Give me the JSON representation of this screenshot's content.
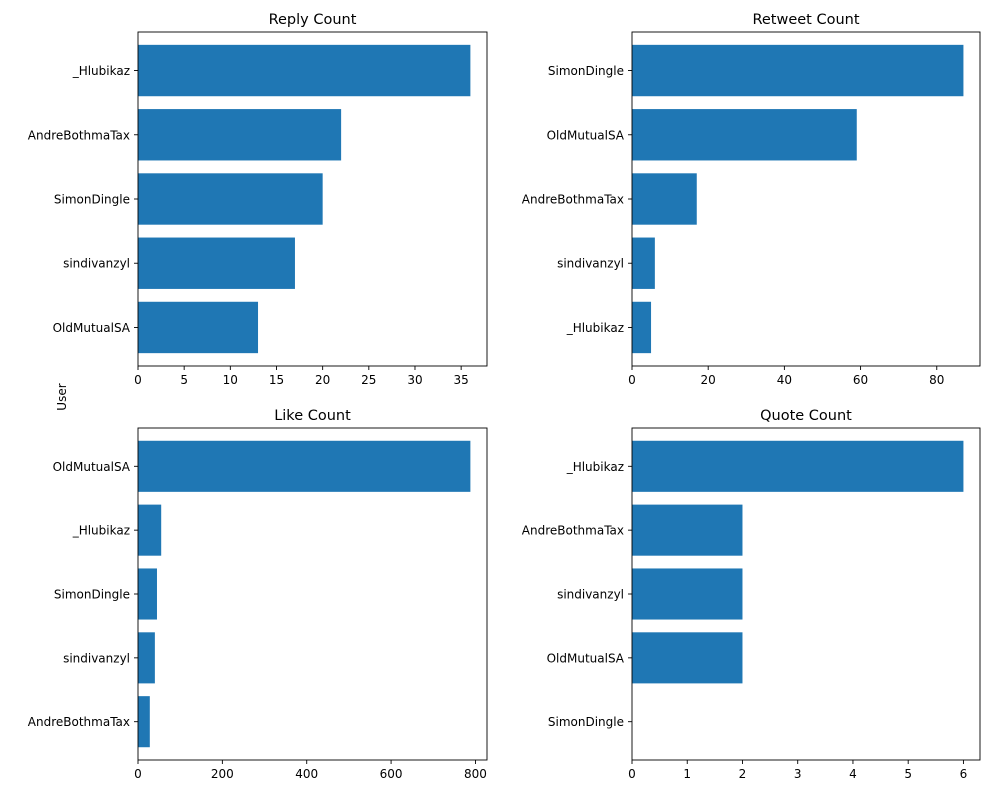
{
  "figure": {
    "shared_ylabel": "User",
    "bar_color": "#1f77b4"
  },
  "chart_data": [
    {
      "type": "bar",
      "orientation": "horizontal",
      "title": "Reply Count",
      "xlabel": "",
      "ylabel": "",
      "categories": [
        "_Hlubikaz",
        "AndreBothmaTax",
        "SimonDingle",
        "sindivanzyl",
        "OldMutualSA"
      ],
      "values": [
        36,
        22,
        20,
        17,
        13
      ],
      "xlim": [
        0,
        37.8
      ],
      "xticks": [
        0,
        5,
        10,
        15,
        20,
        25,
        30,
        35
      ],
      "grid": false
    },
    {
      "type": "bar",
      "orientation": "horizontal",
      "title": "Retweet Count",
      "xlabel": "",
      "ylabel": "",
      "categories": [
        "SimonDingle",
        "OldMutualSA",
        "AndreBothmaTax",
        "sindivanzyl",
        "_Hlubikaz"
      ],
      "values": [
        87,
        59,
        17,
        6,
        5
      ],
      "xlim": [
        0,
        91.35
      ],
      "xticks": [
        0,
        20,
        40,
        60,
        80
      ],
      "grid": false
    },
    {
      "type": "bar",
      "orientation": "horizontal",
      "title": "Like Count",
      "xlabel": "",
      "ylabel": "",
      "categories": [
        "OldMutualSA",
        "_Hlubikaz",
        "SimonDingle",
        "sindivanzyl",
        "AndreBothmaTax"
      ],
      "values": [
        788,
        55,
        45,
        40,
        28
      ],
      "xlim": [
        0,
        827.4
      ],
      "xticks": [
        0,
        200,
        400,
        600,
        800
      ],
      "grid": false
    },
    {
      "type": "bar",
      "orientation": "horizontal",
      "title": "Quote Count",
      "xlabel": "",
      "ylabel": "",
      "categories": [
        "_Hlubikaz",
        "AndreBothmaTax",
        "sindivanzyl",
        "OldMutualSA",
        "SimonDingle"
      ],
      "values": [
        6,
        2,
        2,
        2,
        0
      ],
      "xlim": [
        0,
        6.3
      ],
      "xticks": [
        0,
        1,
        2,
        3,
        4,
        5,
        6
      ],
      "grid": false
    }
  ]
}
